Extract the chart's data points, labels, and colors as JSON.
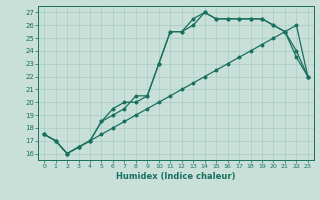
{
  "xlabel": "Humidex (Indice chaleur)",
  "bg_color": "#c8e0d8",
  "line_color": "#1a7060",
  "grid_color": "#a8ccc4",
  "xlim": [
    -0.5,
    23.5
  ],
  "ylim": [
    15.5,
    27.5
  ],
  "xticks": [
    0,
    1,
    2,
    3,
    4,
    5,
    6,
    7,
    8,
    9,
    10,
    11,
    12,
    13,
    14,
    15,
    16,
    17,
    18,
    19,
    20,
    21,
    22,
    23
  ],
  "yticks": [
    16,
    17,
    18,
    19,
    20,
    21,
    22,
    23,
    24,
    25,
    26,
    27
  ],
  "line1_x": [
    0,
    1,
    2,
    3,
    4,
    5,
    6,
    7,
    8,
    9,
    10,
    11,
    12,
    13,
    14,
    15,
    16,
    17,
    18,
    19,
    20,
    21,
    22,
    23
  ],
  "line1_y": [
    17.5,
    17.0,
    16.0,
    16.5,
    17.0,
    17.5,
    18.0,
    18.5,
    19.0,
    19.5,
    20.0,
    20.5,
    21.0,
    21.5,
    22.0,
    22.5,
    23.0,
    23.5,
    24.0,
    24.5,
    25.0,
    25.5,
    26.0,
    22.0
  ],
  "line2_x": [
    0,
    1,
    2,
    3,
    4,
    5,
    6,
    7,
    8,
    9,
    10,
    11,
    12,
    13,
    14,
    15,
    16,
    17,
    18,
    19,
    20,
    21,
    22,
    23
  ],
  "line2_y": [
    17.5,
    17.0,
    16.0,
    16.5,
    17.0,
    18.5,
    19.0,
    19.5,
    20.5,
    20.5,
    23.0,
    25.5,
    25.5,
    26.0,
    27.0,
    26.5,
    26.5,
    26.5,
    26.5,
    26.5,
    26.0,
    25.5,
    24.0,
    22.0
  ],
  "line3_x": [
    0,
    1,
    2,
    3,
    4,
    5,
    6,
    7,
    8,
    9,
    10,
    11,
    12,
    13,
    14,
    15,
    16,
    17,
    18,
    19,
    20,
    21,
    22,
    23
  ],
  "line3_y": [
    17.5,
    17.0,
    16.0,
    16.5,
    17.0,
    18.5,
    19.5,
    20.0,
    20.0,
    20.5,
    23.0,
    25.5,
    25.5,
    26.5,
    27.0,
    26.5,
    26.5,
    26.5,
    26.5,
    26.5,
    26.0,
    25.5,
    23.5,
    22.0
  ]
}
